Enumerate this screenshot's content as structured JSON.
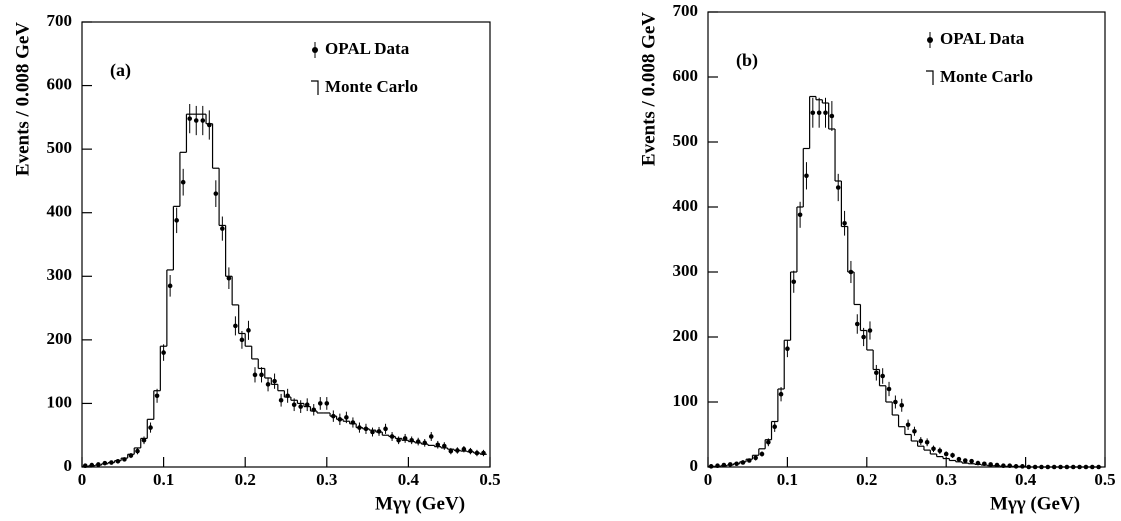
{
  "chart_data": [
    {
      "type": "histogram",
      "title": "(a)",
      "xlabel": "Mγγ (GeV)",
      "ylabel": "Events / 0.008 GeV",
      "xlim": [
        0,
        0.5
      ],
      "xticks": [
        0,
        0.1,
        0.2,
        0.3,
        0.4,
        0.5
      ],
      "ylim": [
        0,
        700
      ],
      "yticks": [
        0,
        100,
        200,
        300,
        400,
        500,
        600,
        700
      ],
      "series": [
        {
          "name": "OPAL Data",
          "color": "#000000",
          "x": [
            0.004,
            0.012,
            0.02,
            0.028,
            0.036,
            0.044,
            0.052,
            0.06,
            0.068,
            0.076,
            0.084,
            0.092,
            0.1,
            0.108,
            0.116,
            0.124,
            0.132,
            0.14,
            0.148,
            0.156,
            0.164,
            0.172,
            0.18,
            0.188,
            0.196,
            0.204,
            0.212,
            0.22,
            0.228,
            0.236,
            0.244,
            0.252,
            0.26,
            0.268,
            0.276,
            0.284,
            0.292,
            0.3,
            0.308,
            0.316,
            0.324,
            0.332,
            0.34,
            0.348,
            0.356,
            0.364,
            0.372,
            0.38,
            0.388,
            0.396,
            0.404,
            0.412,
            0.42,
            0.428,
            0.436,
            0.444,
            0.452,
            0.46,
            0.468,
            0.476,
            0.484,
            0.492
          ],
          "values": [
            2,
            3,
            4,
            6,
            7,
            9,
            12,
            18,
            25,
            42,
            62,
            112,
            180,
            285,
            388,
            448,
            548,
            545,
            545,
            538,
            430,
            375,
            297,
            222,
            200,
            215,
            145,
            145,
            130,
            135,
            105,
            112,
            98,
            95,
            98,
            90,
            100,
            100,
            80,
            75,
            78,
            70,
            62,
            60,
            55,
            56,
            60,
            48,
            42,
            45,
            42,
            40,
            38,
            48,
            35,
            33,
            25,
            26,
            28,
            25,
            22,
            22
          ],
          "errors": [
            1,
            2,
            2,
            2,
            3,
            3,
            3,
            4,
            5,
            6,
            8,
            11,
            13,
            17,
            20,
            21,
            23,
            23,
            23,
            23,
            21,
            19,
            17,
            15,
            14,
            15,
            12,
            12,
            11,
            12,
            10,
            11,
            10,
            10,
            10,
            9,
            10,
            10,
            9,
            9,
            9,
            8,
            8,
            8,
            7,
            7,
            8,
            7,
            6,
            7,
            6,
            6,
            6,
            7,
            6,
            6,
            5,
            5,
            5,
            5,
            5,
            5
          ]
        },
        {
          "name": "Monte Carlo",
          "color": "#000000",
          "bins": [
            0,
            0.008,
            0.016,
            0.024,
            0.032,
            0.04,
            0.048,
            0.056,
            0.064,
            0.072,
            0.08,
            0.088,
            0.096,
            0.104,
            0.112,
            0.12,
            0.128,
            0.136,
            0.144,
            0.152,
            0.16,
            0.168,
            0.176,
            0.184,
            0.192,
            0.2,
            0.208,
            0.216,
            0.224,
            0.232,
            0.24,
            0.248,
            0.256,
            0.264,
            0.272,
            0.28,
            0.288,
            0.296,
            0.304,
            0.312,
            0.32,
            0.328,
            0.336,
            0.344,
            0.352,
            0.36,
            0.368,
            0.376,
            0.384,
            0.392,
            0.4,
            0.408,
            0.416,
            0.424,
            0.432,
            0.44,
            0.448,
            0.456,
            0.464,
            0.472,
            0.48,
            0.488,
            0.496
          ],
          "values": [
            1,
            2,
            3,
            5,
            7,
            10,
            14,
            20,
            30,
            45,
            75,
            120,
            190,
            310,
            410,
            495,
            555,
            555,
            555,
            540,
            470,
            380,
            300,
            255,
            210,
            190,
            170,
            155,
            140,
            130,
            120,
            110,
            105,
            100,
            95,
            88,
            85,
            85,
            80,
            75,
            72,
            68,
            62,
            60,
            58,
            55,
            50,
            48,
            45,
            42,
            40,
            38,
            36,
            34,
            32,
            30,
            28,
            26,
            25,
            24,
            22,
            20
          ]
        }
      ]
    },
    {
      "type": "histogram",
      "title": "(b)",
      "xlabel": "Mγγ (GeV)",
      "ylabel": "Events / 0.008 GeV",
      "xlim": [
        0,
        0.5
      ],
      "xticks": [
        0,
        0.1,
        0.2,
        0.3,
        0.4,
        0.5
      ],
      "ylim": [
        0,
        700
      ],
      "yticks": [
        0,
        100,
        200,
        300,
        400,
        500,
        600,
        700
      ],
      "series": [
        {
          "name": "OPAL Data",
          "color": "#000000",
          "x": [
            0.004,
            0.012,
            0.02,
            0.028,
            0.036,
            0.044,
            0.052,
            0.06,
            0.068,
            0.076,
            0.084,
            0.092,
            0.1,
            0.108,
            0.116,
            0.124,
            0.132,
            0.14,
            0.148,
            0.156,
            0.164,
            0.172,
            0.18,
            0.188,
            0.196,
            0.204,
            0.212,
            0.22,
            0.228,
            0.236,
            0.244,
            0.252,
            0.26,
            0.268,
            0.276,
            0.284,
            0.292,
            0.3,
            0.308,
            0.316,
            0.324,
            0.332,
            0.34,
            0.348,
            0.356,
            0.364,
            0.372,
            0.38,
            0.388,
            0.396,
            0.404,
            0.412,
            0.42,
            0.428,
            0.436,
            0.444,
            0.452,
            0.46,
            0.468,
            0.476,
            0.484,
            0.492
          ],
          "values": [
            1,
            2,
            3,
            4,
            5,
            7,
            10,
            14,
            20,
            38,
            62,
            112,
            182,
            285,
            388,
            448,
            545,
            545,
            545,
            540,
            430,
            375,
            300,
            220,
            200,
            210,
            145,
            140,
            120,
            100,
            95,
            65,
            55,
            40,
            38,
            28,
            25,
            20,
            18,
            12,
            10,
            9,
            6,
            5,
            4,
            3,
            2,
            2,
            1,
            1,
            0,
            0,
            0,
            0,
            0,
            0,
            0,
            0,
            0,
            0,
            0,
            0
          ],
          "errors": [
            1,
            1,
            2,
            2,
            2,
            3,
            3,
            4,
            4,
            6,
            8,
            11,
            13,
            17,
            20,
            21,
            23,
            23,
            23,
            23,
            21,
            19,
            17,
            15,
            14,
            14,
            12,
            12,
            11,
            10,
            10,
            8,
            7,
            6,
            6,
            5,
            5,
            4,
            4,
            3,
            3,
            3,
            2,
            2,
            2,
            2,
            1,
            1,
            1,
            1,
            0,
            0,
            0,
            0,
            0,
            0,
            0,
            0,
            0,
            0,
            0,
            0
          ]
        },
        {
          "name": "Monte Carlo",
          "color": "#000000",
          "bins": [
            0,
            0.008,
            0.016,
            0.024,
            0.032,
            0.04,
            0.048,
            0.056,
            0.064,
            0.072,
            0.08,
            0.088,
            0.096,
            0.104,
            0.112,
            0.12,
            0.128,
            0.136,
            0.144,
            0.152,
            0.16,
            0.168,
            0.176,
            0.184,
            0.192,
            0.2,
            0.208,
            0.216,
            0.224,
            0.232,
            0.24,
            0.248,
            0.256,
            0.264,
            0.272,
            0.28,
            0.288,
            0.296,
            0.304,
            0.312,
            0.32,
            0.328,
            0.336,
            0.344,
            0.352,
            0.36,
            0.368,
            0.376,
            0.384,
            0.392,
            0.4,
            0.408,
            0.416,
            0.424,
            0.432,
            0.44,
            0.448,
            0.456,
            0.464,
            0.472,
            0.48,
            0.488,
            0.496
          ],
          "values": [
            1,
            1,
            2,
            3,
            5,
            8,
            12,
            18,
            28,
            42,
            70,
            120,
            195,
            300,
            400,
            490,
            570,
            565,
            560,
            520,
            440,
            370,
            300,
            250,
            210,
            180,
            150,
            125,
            100,
            80,
            62,
            50,
            40,
            32,
            26,
            20,
            16,
            13,
            10,
            8,
            6,
            5,
            4,
            3,
            2,
            2,
            1,
            1,
            1,
            1,
            0,
            0,
            0,
            0,
            0,
            0,
            0,
            0,
            0,
            0,
            0,
            0
          ]
        }
      ]
    }
  ]
}
